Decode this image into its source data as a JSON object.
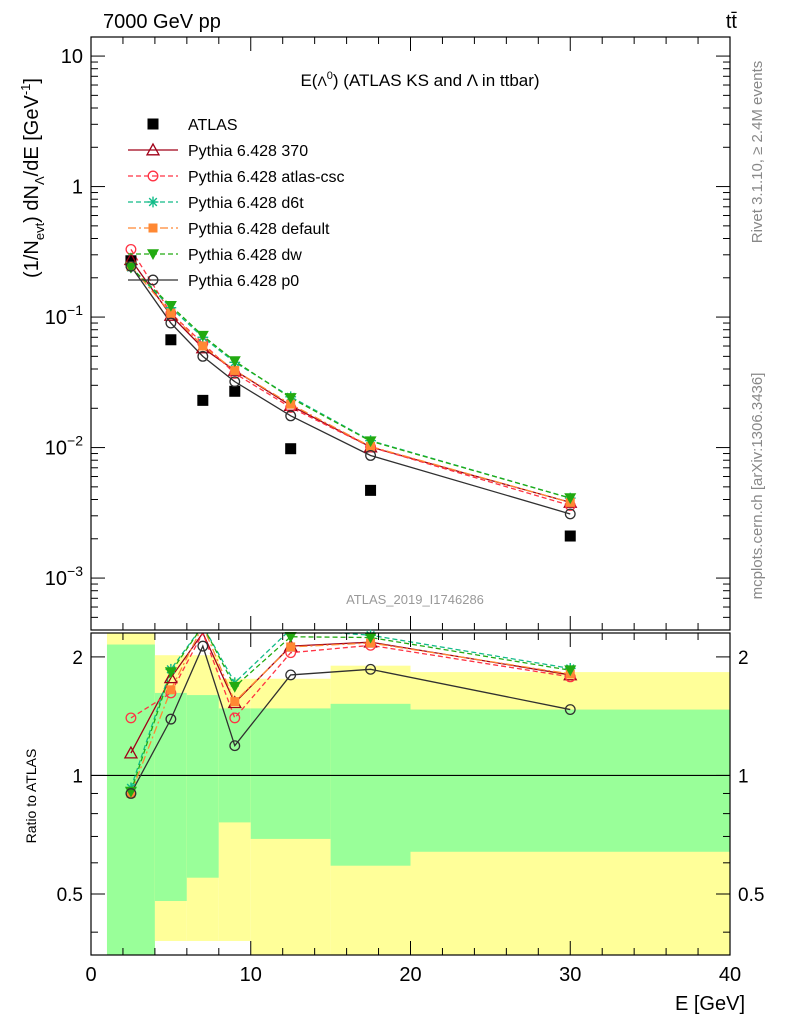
{
  "header": {
    "left": "7000 GeV pp",
    "right": "tt̄"
  },
  "side_labels": {
    "rivet": "Rivet 3.1.10, ≥ 2.4M events",
    "mcplots": "mcplots.cern.ch [arXiv:1306.3436]"
  },
  "watermark": "ATLAS_2019_I1746286",
  "chart_data": [
    {
      "type": "line",
      "title": "E(Λ⁰) (ATLAS KS and Λ in ttbar)",
      "xlabel": "E [GeV]",
      "ylabel": "(1/N_evt) dN_Λ/dE [GeV⁻¹]",
      "ylabel_parts": {
        "pre": "(1/N",
        "sub1": "evt",
        "mid": ") dN",
        "sub2": "Λ",
        "post": "/dE [GeV",
        "sup": "-1",
        "end": "]"
      },
      "xlim": [
        0,
        40
      ],
      "ylim": [
        0.0004,
        14
      ],
      "yscale": "log",
      "yticks": [
        {
          "v": 0.001,
          "m": "10",
          "e": "−3"
        },
        {
          "v": 0.01,
          "m": "10",
          "e": "−2"
        },
        {
          "v": 0.1,
          "m": "10",
          "e": "−1"
        },
        {
          "v": 1,
          "m": "1",
          "e": ""
        },
        {
          "v": 10,
          "m": "10",
          "e": ""
        }
      ],
      "x": [
        2.5,
        5,
        7,
        9,
        12.5,
        17.5,
        30
      ],
      "legend_position": "top-left",
      "series": [
        {
          "name": "ATLAS",
          "color": "#000000",
          "marker": "filled-square",
          "dash": "",
          "line": false,
          "values": [
            0.27,
            0.067,
            0.023,
            0.027,
            0.0098,
            0.0047,
            0.0021
          ]
        },
        {
          "name": "Pythia 6.428 370",
          "color": "#a00018",
          "marker": "open-triangle",
          "dash": "",
          "line": true,
          "values": [
            0.275,
            0.103,
            0.058,
            0.039,
            0.021,
            0.0101,
            0.0038
          ]
        },
        {
          "name": "Pythia 6.428 atlas-csc",
          "color": "#ff3344",
          "marker": "open-circle",
          "dash": "5,3",
          "line": true,
          "values": [
            0.33,
            0.107,
            0.063,
            0.037,
            0.0203,
            0.0101,
            0.0036
          ]
        },
        {
          "name": "Pythia 6.428 d6t",
          "color": "#11bb88",
          "marker": "star",
          "dash": "5,3",
          "line": true,
          "values": [
            0.24,
            0.118,
            0.07,
            0.045,
            0.0245,
            0.0113,
            0.0041
          ]
        },
        {
          "name": "Pythia 6.428 default",
          "color": "#ff8833",
          "marker": "filled-square-small",
          "dash": "8,3,2,3",
          "line": true,
          "values": [
            0.245,
            0.107,
            0.06,
            0.039,
            0.0215,
            0.0102,
            0.0038
          ]
        },
        {
          "name": "Pythia 6.428 dw",
          "color": "#22aa11",
          "marker": "filled-triangle-down",
          "dash": "5,3",
          "line": true,
          "values": [
            0.24,
            0.122,
            0.072,
            0.046,
            0.024,
            0.0112,
            0.0041
          ]
        },
        {
          "name": "Pythia 6.428 p0",
          "color": "#303030",
          "marker": "open-circle",
          "dash": "",
          "line": true,
          "values": [
            0.245,
            0.09,
            0.05,
            0.032,
            0.0175,
            0.0087,
            0.0031
          ]
        }
      ]
    },
    {
      "type": "line",
      "ylabel": "Ratio to ATLAS",
      "xlabel": "E [GeV]",
      "xlim": [
        0,
        40
      ],
      "ylim": [
        0.35,
        2.3
      ],
      "yscale": "log",
      "yticks": [
        {
          "v": 0.5,
          "m": "0.5"
        },
        {
          "v": 1,
          "m": "1"
        },
        {
          "v": 2,
          "m": "2"
        }
      ],
      "xticks": [
        0,
        10,
        20,
        30,
        40
      ],
      "reference_line": 1,
      "bands": [
        {
          "x0": 1,
          "x1": 4,
          "y_lo": 0.35,
          "y_hi": 2.3,
          "g_lo": 0.35,
          "g_hi": 2.15
        },
        {
          "x0": 4,
          "x1": 6,
          "y_lo": 0.38,
          "y_hi": 2.02,
          "g_lo": 0.48,
          "g_hi": 1.62
        },
        {
          "x0": 6,
          "x1": 8,
          "y_lo": 0.38,
          "y_hi": 2.02,
          "g_lo": 0.55,
          "g_hi": 1.6
        },
        {
          "x0": 8,
          "x1": 10,
          "y_lo": 0.38,
          "y_hi": 1.76,
          "g_lo": 0.76,
          "g_hi": 1.48
        },
        {
          "x0": 10,
          "x1": 15,
          "y_lo": 0.35,
          "y_hi": 1.76,
          "g_lo": 0.69,
          "g_hi": 1.48
        },
        {
          "x0": 15,
          "x1": 20,
          "y_lo": 0.35,
          "y_hi": 1.9,
          "g_lo": 0.59,
          "g_hi": 1.52
        },
        {
          "x0": 20,
          "x1": 40,
          "y_lo": 0.35,
          "y_hi": 1.83,
          "g_lo": 0.64,
          "g_hi": 1.47
        }
      ],
      "x": [
        2.5,
        5,
        7,
        9,
        12.5,
        17.5,
        30
      ],
      "series": [
        {
          "name": "Pythia 6.428 370",
          "color": "#a00018",
          "marker": "open-triangle",
          "dash": "",
          "values": [
            1.14,
            1.77,
            2.3,
            1.53,
            2.13,
            2.18,
            1.8
          ]
        },
        {
          "name": "Pythia 6.428 atlas-csc",
          "color": "#ff3344",
          "marker": "open-circle",
          "dash": "5,3",
          "values": [
            1.4,
            1.62,
            2.3,
            1.4,
            2.05,
            2.14,
            1.78
          ]
        },
        {
          "name": "Pythia 6.428 d6t",
          "color": "#11bb88",
          "marker": "star",
          "dash": "5,3",
          "values": [
            0.93,
            1.86,
            2.4,
            1.72,
            2.35,
            2.27,
            1.87
          ]
        },
        {
          "name": "Pythia 6.428 default",
          "color": "#ff8833",
          "marker": "filled-square-small",
          "dash": "8,3,2,3",
          "values": [
            0.9,
            1.65,
            2.4,
            1.54,
            2.12,
            2.17,
            1.81
          ]
        },
        {
          "name": "Pythia 6.428 dw",
          "color": "#22aa11",
          "marker": "filled-triangle-down",
          "dash": "5,3",
          "values": [
            0.91,
            1.83,
            2.4,
            1.68,
            2.25,
            2.24,
            1.85
          ]
        },
        {
          "name": "Pythia 6.428 p0",
          "color": "#303030",
          "marker": "open-circle",
          "dash": "",
          "values": [
            0.9,
            1.39,
            2.13,
            1.19,
            1.8,
            1.86,
            1.47
          ]
        }
      ]
    }
  ]
}
